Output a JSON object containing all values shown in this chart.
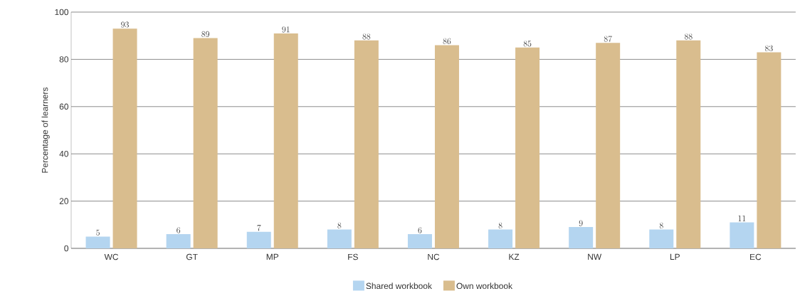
{
  "chart_data": {
    "type": "bar",
    "ylabel": "Percentage of learners",
    "categories": [
      "WC",
      "GT",
      "MP",
      "FS",
      "NC",
      "KZ",
      "NW",
      "LP",
      "EC"
    ],
    "series": [
      {
        "name": "Shared workbook",
        "color": "#b4d5f0",
        "values": [
          5,
          6,
          7,
          8,
          6,
          8,
          9,
          8,
          11
        ]
      },
      {
        "name": "Own workbook",
        "color": "#d9bd8e",
        "values": [
          93,
          89,
          91,
          88,
          86,
          85,
          87,
          88,
          83
        ]
      }
    ],
    "ylim": [
      0,
      100
    ],
    "yticks": [
      0,
      20,
      40,
      60,
      80,
      100
    ],
    "grid": "y",
    "legend": "bottom",
    "data_labels": true
  }
}
